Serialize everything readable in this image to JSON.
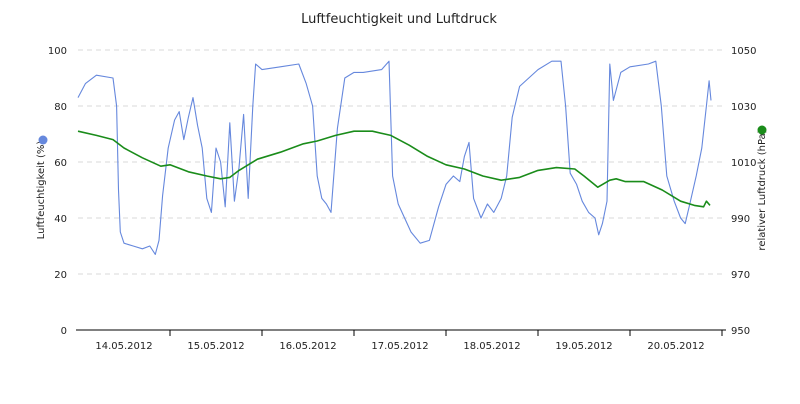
{
  "chart_data": {
    "type": "line",
    "title": "Luftfeuchtigkeit und Luftdruck",
    "x_tick_labels": [
      "14.05.2012",
      "15.05.2012",
      "16.05.2012",
      "17.05.2012",
      "18.05.2012",
      "19.05.2012",
      "20.05.2012"
    ],
    "x_range_days": [
      0,
      7
    ],
    "left_axis": {
      "label": "Luftfeuchtigkeit (%)",
      "range": [
        0,
        100
      ],
      "ticks": [
        "0",
        "20",
        "40",
        "60",
        "80",
        "100"
      ]
    },
    "right_axis": {
      "label": "relativer Luftdruck (hPa)",
      "range": [
        950,
        1050
      ],
      "ticks": [
        "950",
        "970",
        "990",
        "1010",
        "1030",
        "1050"
      ]
    },
    "grid": "horizontal dashed",
    "series": [
      {
        "name": "Luftfeuchtigkeit",
        "axis": "left",
        "color": "#6688dd",
        "points": [
          [
            0.0,
            83
          ],
          [
            0.08,
            88
          ],
          [
            0.2,
            91
          ],
          [
            0.38,
            90
          ],
          [
            0.42,
            80
          ],
          [
            0.44,
            50
          ],
          [
            0.46,
            35
          ],
          [
            0.5,
            31
          ],
          [
            0.6,
            30
          ],
          [
            0.7,
            29
          ],
          [
            0.78,
            30
          ],
          [
            0.84,
            27
          ],
          [
            0.88,
            32
          ],
          [
            0.92,
            48
          ],
          [
            0.98,
            65
          ],
          [
            1.05,
            75
          ],
          [
            1.1,
            78
          ],
          [
            1.15,
            68
          ],
          [
            1.2,
            76
          ],
          [
            1.25,
            83
          ],
          [
            1.3,
            73
          ],
          [
            1.35,
            65
          ],
          [
            1.4,
            47
          ],
          [
            1.45,
            42
          ],
          [
            1.5,
            65
          ],
          [
            1.55,
            60
          ],
          [
            1.6,
            44
          ],
          [
            1.65,
            74
          ],
          [
            1.7,
            46
          ],
          [
            1.75,
            58
          ],
          [
            1.8,
            77
          ],
          [
            1.85,
            47
          ],
          [
            1.9,
            80
          ],
          [
            1.93,
            95
          ],
          [
            2.0,
            93
          ],
          [
            2.2,
            94
          ],
          [
            2.4,
            95
          ],
          [
            2.48,
            88
          ],
          [
            2.55,
            80
          ],
          [
            2.6,
            55
          ],
          [
            2.65,
            47
          ],
          [
            2.7,
            45
          ],
          [
            2.75,
            42
          ],
          [
            2.82,
            72
          ],
          [
            2.9,
            90
          ],
          [
            3.0,
            92
          ],
          [
            3.1,
            92
          ],
          [
            3.3,
            93
          ],
          [
            3.38,
            96
          ],
          [
            3.42,
            55
          ],
          [
            3.48,
            45
          ],
          [
            3.55,
            40
          ],
          [
            3.62,
            35
          ],
          [
            3.72,
            31
          ],
          [
            3.82,
            32
          ],
          [
            3.92,
            44
          ],
          [
            4.0,
            52
          ],
          [
            4.08,
            55
          ],
          [
            4.15,
            53
          ],
          [
            4.2,
            62
          ],
          [
            4.25,
            67
          ],
          [
            4.3,
            47
          ],
          [
            4.38,
            40
          ],
          [
            4.45,
            45
          ],
          [
            4.52,
            42
          ],
          [
            4.6,
            47
          ],
          [
            4.66,
            55
          ],
          [
            4.72,
            76
          ],
          [
            4.8,
            87
          ],
          [
            4.9,
            90
          ],
          [
            5.0,
            93
          ],
          [
            5.15,
            96
          ],
          [
            5.25,
            96
          ],
          [
            5.3,
            80
          ],
          [
            5.35,
            56
          ],
          [
            5.42,
            52
          ],
          [
            5.48,
            46
          ],
          [
            5.55,
            42
          ],
          [
            5.62,
            40
          ],
          [
            5.66,
            34
          ],
          [
            5.7,
            38
          ],
          [
            5.75,
            46
          ],
          [
            5.78,
            95
          ],
          [
            5.82,
            82
          ],
          [
            5.9,
            92
          ],
          [
            6.0,
            94
          ],
          [
            6.2,
            95
          ],
          [
            6.28,
            96
          ],
          [
            6.34,
            80
          ],
          [
            6.4,
            55
          ],
          [
            6.48,
            46
          ],
          [
            6.55,
            40
          ],
          [
            6.6,
            38
          ],
          [
            6.65,
            45
          ],
          [
            6.72,
            55
          ],
          [
            6.78,
            65
          ],
          [
            6.83,
            80
          ],
          [
            6.86,
            89
          ],
          [
            6.88,
            82
          ]
        ]
      },
      {
        "name": "Luftdruck",
        "axis": "right",
        "color": "#1a8c1a",
        "points": [
          [
            0.0,
            1021
          ],
          [
            0.2,
            1019.5
          ],
          [
            0.38,
            1018
          ],
          [
            0.5,
            1015
          ],
          [
            0.7,
            1011.5
          ],
          [
            0.9,
            1008.5
          ],
          [
            1.0,
            1009
          ],
          [
            1.2,
            1006.5
          ],
          [
            1.4,
            1005
          ],
          [
            1.55,
            1004
          ],
          [
            1.65,
            1004.5
          ],
          [
            1.75,
            1007
          ],
          [
            1.95,
            1011
          ],
          [
            2.2,
            1013.5
          ],
          [
            2.45,
            1016.5
          ],
          [
            2.6,
            1017.5
          ],
          [
            2.8,
            1019.5
          ],
          [
            3.0,
            1021
          ],
          [
            3.2,
            1021
          ],
          [
            3.4,
            1019.5
          ],
          [
            3.6,
            1016
          ],
          [
            3.8,
            1012
          ],
          [
            4.0,
            1009
          ],
          [
            4.2,
            1007.5
          ],
          [
            4.4,
            1005
          ],
          [
            4.6,
            1003.5
          ],
          [
            4.8,
            1004.5
          ],
          [
            5.0,
            1007
          ],
          [
            5.2,
            1008
          ],
          [
            5.4,
            1007.5
          ],
          [
            5.5,
            1005
          ],
          [
            5.65,
            1001
          ],
          [
            5.78,
            1003.5
          ],
          [
            5.85,
            1004
          ],
          [
            5.95,
            1003
          ],
          [
            6.15,
            1003
          ],
          [
            6.35,
            1000
          ],
          [
            6.55,
            996
          ],
          [
            6.7,
            994.5
          ],
          [
            6.8,
            994
          ],
          [
            6.83,
            996
          ],
          [
            6.87,
            994.5
          ]
        ]
      }
    ]
  }
}
